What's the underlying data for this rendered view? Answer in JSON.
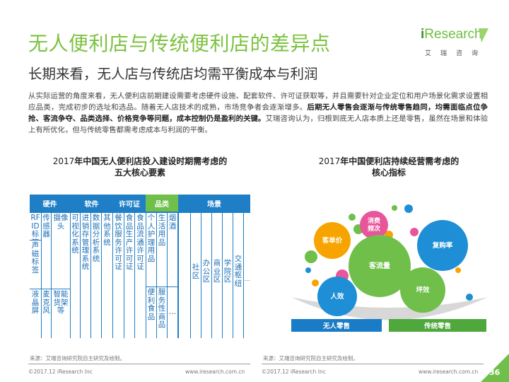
{
  "header": {
    "title": "无人便利店与传统便利店的差异点",
    "subtitle": "长期来看，无人店与传统店均需平衡成本与利润"
  },
  "logo": {
    "i": "i",
    "brand": "Research",
    "sub": "艾瑞咨询"
  },
  "intro": {
    "normal": "从实际运营的角度来看，无人便利店前期建设需要考虑硬件设施、配套软件、许可证获取等，并且需要针对企业定位和用户场景化需求设置相应品类，完成初步的选址和选品。随着无人店技术的成熟，市场竞争者会逐渐增多。",
    "bold": "后期无人零售会逐渐与传统零售趋同，均需面临点位争抢、客流争夺、品类选择、价格竞争等问题，成本控制仍是盈利的关键。",
    "tail": "艾瑞咨询认为，归根到底无人店本质上还是零售，虽然在场景和体验上有所优化，但与传统零售都需考虑成本与利润的平衡。"
  },
  "left_chart": {
    "title_year": "2017",
    "title_line1": "年中国无人便利店投入建设时期需考虑的",
    "title_line2": "五大核心要素",
    "headers": [
      "硬件",
      "软件",
      "许可证",
      "品类",
      "场景"
    ],
    "cells": {
      "rfid": "RFID标签",
      "acoustic": "声磁标签",
      "sensor": "传感器",
      "camera": "摄像头",
      "lcd": "液晶屏",
      "mic": "麦克风",
      "shelf": "智能货架等",
      "visual": "可视化系统",
      "erp": "进销存管理系统",
      "analytics": "数据分析系统",
      "other": "其他系统",
      "catering": "餐饮服务许可证",
      "food_prod": "食品生产许可证",
      "food_circ": "食品流通许可证",
      "personal": "个人护理用品",
      "living": "生活用品",
      "tobacco": "烟酒",
      "convenience_food": "便利食品",
      "service_goods": "服务性商品",
      "more": "…",
      "community": "社区",
      "office": "办公区",
      "business": "商业区",
      "school": "学院区",
      "transport": "交通枢纽",
      "scene_more": "…"
    }
  },
  "right_chart": {
    "title_year": "2017",
    "title_line1": "年中国便利店持续经营需考虑的",
    "title_line2": "核心指标",
    "bubbles": [
      "消费频次",
      "客单价",
      "复购率",
      "客流量",
      "人效",
      "坪效"
    ],
    "bases": [
      "无人零售",
      "传统零售"
    ]
  },
  "source_left": "来源：艾瑞咨询研究院自主研究及绘制。",
  "source_right": "来源：艾瑞咨询研究院自主研究及绘制。",
  "footer": {
    "copy_left": "©2017.12 iResearch Inc",
    "url_left": "www.iresearch.com.cn",
    "copy_right": "©2017.12 iResearch Inc",
    "url_right": "www.iresearch.com.cn",
    "page": "36"
  },
  "colors": {
    "title_green": "#7dc242",
    "table_blue": "#1e7fc6",
    "cell_text_blue": "#1f6fb5",
    "header_green": "#6fbf4a",
    "bubble_pink": "#e9559a",
    "bubble_orange": "#f7a400",
    "bubble_blue": "#1e8fd6",
    "bubble_green": "#6fbf4a",
    "base_blue": "#1a7bc6",
    "base_green": "#4fa83c"
  }
}
